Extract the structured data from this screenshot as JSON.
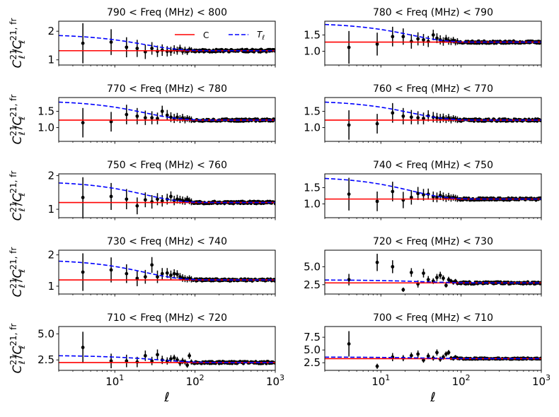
{
  "figure": {
    "x_label": "ℓ",
    "y_label_main": "C",
    "y_label_sup": "21",
    "y_label_sub": "ℓ",
    "y_label_sup2": "21, fr",
    "x_ticks": [
      {
        "value": 10,
        "base": "10",
        "exp": "1"
      },
      {
        "value": 100,
        "base": "10",
        "exp": "2"
      },
      {
        "value": 1000,
        "base": "10",
        "exp": "3"
      }
    ],
    "legend": [
      {
        "label": "C",
        "color": "#ff0000",
        "style": "solid"
      },
      {
        "label": "T",
        "label_sub": "ℓ",
        "color": "#0000ff",
        "style": "dashed"
      }
    ]
  },
  "chart_data": [
    {
      "type": "scatter",
      "title": "790 < Freq (MHz) < 800",
      "xscale": "log",
      "xlim": [
        2,
        1000
      ],
      "ylim": [
        0.82,
        2.35
      ],
      "yticks": [
        {
          "v": 1,
          "label": "1"
        },
        {
          "v": 2,
          "label": "2"
        }
      ],
      "c_value": 1.32,
      "t_end": 1.85,
      "t_scale": 4,
      "scatter": 0.05,
      "seed": 11,
      "points": [
        [
          4,
          1.58,
          0.7
        ],
        [
          9,
          1.62,
          0.45
        ],
        [
          14,
          1.44,
          0.35
        ],
        [
          19,
          1.4,
          0.3
        ],
        [
          24,
          1.28,
          0.25
        ],
        [
          29,
          1.4,
          0.22
        ],
        [
          34,
          1.3,
          0.2
        ],
        [
          39,
          1.34,
          0.2
        ],
        [
          45,
          1.3,
          0.18
        ],
        [
          50,
          1.3,
          0.16
        ],
        [
          55,
          1.36,
          0.15
        ],
        [
          60,
          1.32,
          0.14
        ],
        [
          65,
          1.4,
          0.13
        ],
        [
          70,
          1.3,
          0.12
        ],
        [
          75,
          1.34,
          0.12
        ],
        [
          80,
          1.28,
          0.11
        ],
        [
          85,
          1.36,
          0.1
        ],
        [
          90,
          1.34,
          0.1
        ]
      ]
    },
    {
      "type": "scatter",
      "title": "780 < Freq (MHz) < 790",
      "xscale": "log",
      "xlim": [
        2,
        1000
      ],
      "ylim": [
        0.58,
        1.92
      ],
      "yticks": [
        {
          "v": 1.0,
          "label": "1.0"
        },
        {
          "v": 1.5,
          "label": "1.5"
        }
      ],
      "c_value": 1.28,
      "t_end": 1.82,
      "t_scale": 4,
      "scatter": 0.04,
      "seed": 23,
      "points": [
        [
          4,
          1.12,
          0.5
        ],
        [
          9,
          1.22,
          0.35
        ],
        [
          14,
          1.45,
          0.3
        ],
        [
          19,
          1.45,
          0.25
        ],
        [
          24,
          1.3,
          0.22
        ],
        [
          29,
          1.38,
          0.2
        ],
        [
          34,
          1.35,
          0.18
        ],
        [
          39,
          1.3,
          0.17
        ],
        [
          45,
          1.5,
          0.16
        ],
        [
          50,
          1.4,
          0.15
        ],
        [
          55,
          1.35,
          0.14
        ],
        [
          60,
          1.3,
          0.13
        ],
        [
          65,
          1.38,
          0.12
        ],
        [
          70,
          1.32,
          0.12
        ],
        [
          75,
          1.3,
          0.11
        ],
        [
          80,
          1.34,
          0.1
        ],
        [
          85,
          1.28,
          0.1
        ],
        [
          90,
          1.3,
          0.1
        ]
      ]
    },
    {
      "type": "scatter",
      "title": "770 < Freq (MHz) < 780",
      "xscale": "log",
      "xlim": [
        2,
        1000
      ],
      "ylim": [
        0.58,
        1.92
      ],
      "yticks": [
        {
          "v": 1.0,
          "label": "1.0"
        },
        {
          "v": 1.5,
          "label": "1.5"
        }
      ],
      "c_value": 1.23,
      "t_end": 1.78,
      "t_scale": 4,
      "scatter": 0.04,
      "seed": 37,
      "points": [
        [
          4,
          1.15,
          0.45
        ],
        [
          9,
          1.18,
          0.3
        ],
        [
          14,
          1.4,
          0.3
        ],
        [
          19,
          1.35,
          0.25
        ],
        [
          24,
          1.3,
          0.22
        ],
        [
          29,
          1.3,
          0.2
        ],
        [
          34,
          1.28,
          0.18
        ],
        [
          39,
          1.5,
          0.17
        ],
        [
          45,
          1.38,
          0.16
        ],
        [
          50,
          1.32,
          0.15
        ],
        [
          55,
          1.28,
          0.14
        ],
        [
          60,
          1.32,
          0.13
        ],
        [
          65,
          1.26,
          0.12
        ],
        [
          70,
          1.3,
          0.12
        ],
        [
          75,
          1.24,
          0.11
        ],
        [
          80,
          1.28,
          0.1
        ],
        [
          85,
          1.26,
          0.1
        ],
        [
          90,
          1.24,
          0.1
        ]
      ]
    },
    {
      "type": "scatter",
      "title": "760 < Freq (MHz) < 770",
      "xscale": "log",
      "xlim": [
        2,
        1000
      ],
      "ylim": [
        0.58,
        1.92
      ],
      "yticks": [
        {
          "v": 1.0,
          "label": "1.0"
        },
        {
          "v": 1.5,
          "label": "1.5"
        }
      ],
      "c_value": 1.23,
      "t_end": 1.78,
      "t_scale": 4,
      "scatter": 0.04,
      "seed": 41,
      "points": [
        [
          4,
          1.08,
          0.45
        ],
        [
          9,
          1.12,
          0.3
        ],
        [
          14,
          1.45,
          0.3
        ],
        [
          19,
          1.35,
          0.25
        ],
        [
          24,
          1.32,
          0.22
        ],
        [
          29,
          1.3,
          0.2
        ],
        [
          34,
          1.28,
          0.18
        ],
        [
          39,
          1.36,
          0.17
        ],
        [
          45,
          1.32,
          0.16
        ],
        [
          50,
          1.3,
          0.15
        ],
        [
          55,
          1.28,
          0.14
        ],
        [
          60,
          1.3,
          0.13
        ],
        [
          65,
          1.26,
          0.12
        ],
        [
          70,
          1.3,
          0.12
        ],
        [
          75,
          1.24,
          0.11
        ],
        [
          80,
          1.28,
          0.1
        ],
        [
          85,
          1.26,
          0.1
        ],
        [
          90,
          1.24,
          0.1
        ]
      ]
    },
    {
      "type": "scatter",
      "title": "750 < Freq (MHz) < 760",
      "xscale": "log",
      "xlim": [
        2,
        1000
      ],
      "ylim": [
        0.75,
        2.05
      ],
      "yticks": [
        {
          "v": 1,
          "label": "1"
        },
        {
          "v": 2,
          "label": "2"
        }
      ],
      "c_value": 1.2,
      "t_end": 1.78,
      "t_scale": 4,
      "scatter": 0.04,
      "seed": 53,
      "points": [
        [
          4,
          1.35,
          0.6
        ],
        [
          9,
          1.38,
          0.4
        ],
        [
          14,
          1.3,
          0.3
        ],
        [
          19,
          1.1,
          0.25
        ],
        [
          24,
          1.28,
          0.22
        ],
        [
          29,
          1.22,
          0.2
        ],
        [
          34,
          1.3,
          0.18
        ],
        [
          39,
          1.25,
          0.17
        ],
        [
          45,
          1.3,
          0.16
        ],
        [
          50,
          1.38,
          0.15
        ],
        [
          55,
          1.26,
          0.14
        ],
        [
          60,
          1.3,
          0.13
        ],
        [
          65,
          1.28,
          0.12
        ],
        [
          70,
          1.26,
          0.12
        ],
        [
          75,
          1.24,
          0.11
        ],
        [
          80,
          1.3,
          0.1
        ],
        [
          85,
          1.25,
          0.1
        ],
        [
          90,
          1.22,
          0.1
        ]
      ]
    },
    {
      "type": "scatter",
      "title": "740 < Freq (MHz) < 750",
      "xscale": "log",
      "xlim": [
        2,
        1000
      ],
      "ylim": [
        0.58,
        1.92
      ],
      "yticks": [
        {
          "v": 1.0,
          "label": "1.0"
        },
        {
          "v": 1.5,
          "label": "1.5"
        }
      ],
      "c_value": 1.15,
      "t_end": 1.78,
      "t_scale": 4,
      "scatter": 0.04,
      "seed": 67,
      "points": [
        [
          4,
          1.3,
          0.5
        ],
        [
          9,
          1.08,
          0.3
        ],
        [
          14,
          1.38,
          0.3
        ],
        [
          19,
          1.12,
          0.25
        ],
        [
          24,
          1.2,
          0.22
        ],
        [
          29,
          1.32,
          0.2
        ],
        [
          34,
          1.28,
          0.18
        ],
        [
          39,
          1.3,
          0.17
        ],
        [
          45,
          1.22,
          0.16
        ],
        [
          50,
          1.2,
          0.15
        ],
        [
          55,
          1.26,
          0.14
        ],
        [
          60,
          1.22,
          0.13
        ],
        [
          65,
          1.18,
          0.12
        ],
        [
          70,
          1.22,
          0.12
        ],
        [
          75,
          1.18,
          0.11
        ],
        [
          80,
          1.2,
          0.1
        ],
        [
          85,
          1.18,
          0.1
        ],
        [
          90,
          1.16,
          0.1
        ]
      ]
    },
    {
      "type": "scatter",
      "title": "730 < Freq (MHz) < 740",
      "xscale": "log",
      "xlim": [
        2,
        1000
      ],
      "ylim": [
        0.75,
        2.15
      ],
      "yticks": [
        {
          "v": 1,
          "label": "1"
        },
        {
          "v": 2,
          "label": "2"
        }
      ],
      "c_value": 1.2,
      "t_end": 1.8,
      "t_scale": 4,
      "scatter": 0.04,
      "seed": 71,
      "points": [
        [
          4,
          1.45,
          0.6
        ],
        [
          9,
          1.52,
          0.4
        ],
        [
          14,
          1.4,
          0.3
        ],
        [
          19,
          1.25,
          0.25
        ],
        [
          24,
          1.3,
          0.22
        ],
        [
          29,
          1.68,
          0.25
        ],
        [
          34,
          1.3,
          0.2
        ],
        [
          39,
          1.4,
          0.18
        ],
        [
          45,
          1.42,
          0.16
        ],
        [
          50,
          1.35,
          0.15
        ],
        [
          55,
          1.4,
          0.14
        ],
        [
          60,
          1.38,
          0.13
        ],
        [
          65,
          1.3,
          0.12
        ],
        [
          70,
          1.26,
          0.12
        ],
        [
          75,
          1.24,
          0.11
        ],
        [
          80,
          1.22,
          0.1
        ],
        [
          85,
          1.25,
          0.1
        ],
        [
          90,
          1.22,
          0.1
        ]
      ]
    },
    {
      "type": "scatter",
      "title": "720 < Freq (MHz) < 730",
      "xscale": "log",
      "xlim": [
        2,
        1000
      ],
      "ylim": [
        1.2,
        7.3
      ],
      "yticks": [
        {
          "v": 2.5,
          "label": "2.5"
        },
        {
          "v": 5.0,
          "label": "5.0"
        }
      ],
      "c_value": 2.75,
      "t_end": 3.15,
      "t_scale": 6,
      "scatter": 0.18,
      "seed": 83,
      "points": [
        [
          4,
          3.2,
          0.8
        ],
        [
          9,
          5.6,
          1.2
        ],
        [
          14,
          5.0,
          0.9
        ],
        [
          19,
          1.8,
          0.3
        ],
        [
          24,
          4.2,
          0.6
        ],
        [
          29,
          2.6,
          0.5
        ],
        [
          34,
          4.1,
          0.6
        ],
        [
          39,
          3.2,
          0.5
        ],
        [
          45,
          3.0,
          0.4
        ],
        [
          50,
          3.5,
          0.5
        ],
        [
          55,
          3.8,
          0.5
        ],
        [
          60,
          3.4,
          0.4
        ],
        [
          65,
          2.4,
          0.3
        ],
        [
          70,
          3.2,
          0.4
        ],
        [
          75,
          3.0,
          0.3
        ],
        [
          80,
          2.8,
          0.3
        ],
        [
          85,
          3.0,
          0.3
        ],
        [
          90,
          2.7,
          0.3
        ]
      ]
    },
    {
      "type": "scatter",
      "title": "710 < Freq (MHz) < 720",
      "xscale": "log",
      "xlim": [
        2,
        1000
      ],
      "ylim": [
        1.5,
        5.7
      ],
      "yticks": [
        {
          "v": 2.5,
          "label": "2.5"
        },
        {
          "v": 5.0,
          "label": "5.0"
        }
      ],
      "c_value": 2.25,
      "t_end": 2.9,
      "t_scale": 6,
      "scatter": 0.12,
      "seed": 97,
      "points": [
        [
          4,
          3.7,
          1.5
        ],
        [
          9,
          2.4,
          0.7
        ],
        [
          14,
          2.4,
          0.6
        ],
        [
          19,
          2.3,
          0.5
        ],
        [
          24,
          2.9,
          0.5
        ],
        [
          29,
          2.4,
          0.4
        ],
        [
          34,
          3.0,
          0.5
        ],
        [
          39,
          2.5,
          0.4
        ],
        [
          45,
          2.4,
          0.35
        ],
        [
          50,
          2.6,
          0.35
        ],
        [
          55,
          2.7,
          0.3
        ],
        [
          60,
          2.5,
          0.3
        ],
        [
          65,
          2.2,
          0.3
        ],
        [
          70,
          2.4,
          0.3
        ],
        [
          75,
          2.3,
          0.25
        ],
        [
          80,
          2.0,
          0.25
        ],
        [
          85,
          2.9,
          0.3
        ],
        [
          90,
          2.3,
          0.25
        ]
      ]
    },
    {
      "type": "scatter",
      "title": "700 < Freq (MHz) < 710",
      "xscale": "log",
      "xlim": [
        2,
        1000
      ],
      "ylim": [
        1.0,
        9.6
      ],
      "yticks": [
        {
          "v": 2.5,
          "label": "2.5"
        },
        {
          "v": 5.0,
          "label": "5.0"
        },
        {
          "v": 7.5,
          "label": "7.5"
        }
      ],
      "c_value": 3.3,
      "t_end": 3.6,
      "t_scale": 6,
      "scatter": 0.16,
      "seed": 101,
      "points": [
        [
          4,
          6.2,
          2.5
        ],
        [
          9,
          1.8,
          0.5
        ],
        [
          14,
          3.6,
          0.8
        ],
        [
          19,
          3.4,
          0.6
        ],
        [
          24,
          3.9,
          0.6
        ],
        [
          29,
          4.2,
          0.7
        ],
        [
          34,
          3.0,
          0.5
        ],
        [
          39,
          3.8,
          0.6
        ],
        [
          45,
          3.4,
          0.5
        ],
        [
          50,
          4.5,
          0.6
        ],
        [
          55,
          3.2,
          0.5
        ],
        [
          60,
          3.6,
          0.5
        ],
        [
          65,
          4.2,
          0.5
        ],
        [
          70,
          4.5,
          0.5
        ],
        [
          75,
          3.4,
          0.4
        ],
        [
          80,
          3.3,
          0.4
        ],
        [
          85,
          3.6,
          0.4
        ],
        [
          90,
          3.4,
          0.4
        ]
      ]
    }
  ]
}
